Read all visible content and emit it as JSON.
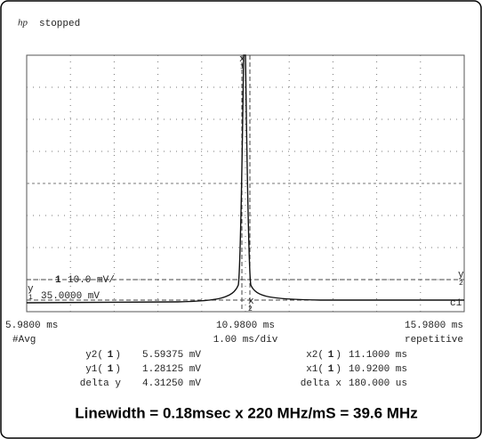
{
  "header": {
    "logo": "hp",
    "status": "stopped"
  },
  "screen": {
    "channel": "1",
    "scale": "10.0 mV/",
    "offset": "35.0000 mV",
    "channel_label": "c1",
    "cursor_top": "x",
    "cursor_top_index": "1",
    "cursor_bottom": "x",
    "cursor_bottom_index": "2",
    "cursor_y2": "y",
    "cursor_y2_index": "2",
    "cursor_y1": "y",
    "cursor_y1_index": "1"
  },
  "timebase": {
    "left": "5.9800 ms",
    "center": "10.9800 ms",
    "right": "15.9800 ms",
    "mode": "#Avg",
    "scale": "1.00 ms/div",
    "acquisition": "repetitive"
  },
  "measurements": [
    [
      {
        "open": "y2(",
        "channel": "1",
        "close": ")",
        "value": "5.59375 mV"
      },
      {
        "open": "x2(",
        "channel": "1",
        "close": ")",
        "value": "11.1000 ms"
      }
    ],
    [
      {
        "open": "y1(",
        "channel": "1",
        "close": ")",
        "value": "1.28125 mV"
      },
      {
        "open": "x1(",
        "channel": "1",
        "close": ")",
        "value": "10.9200 ms"
      }
    ],
    [
      {
        "open": "delta y",
        "value": "4.31250 mV"
      },
      {
        "open": "delta x",
        "value": "180.000 us"
      }
    ]
  ],
  "caption": "Linewidth = 0.18msec x 220 MHz/mS = 39.6 MHz"
}
